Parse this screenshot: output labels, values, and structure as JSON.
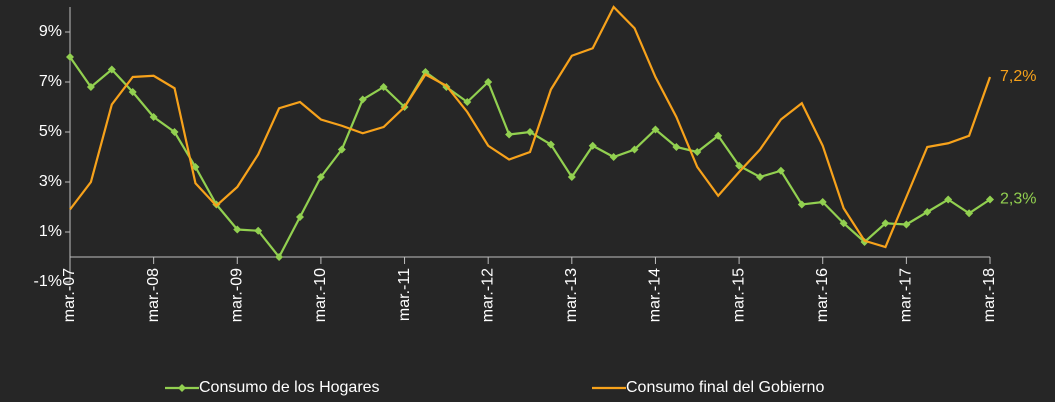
{
  "chart_data": {
    "type": "line",
    "categories": [
      "mar.-07",
      null,
      null,
      null,
      "mar.-08",
      null,
      null,
      null,
      "mar.-09",
      null,
      null,
      null,
      "mar.-10",
      null,
      null,
      null,
      "mar.-11",
      null,
      null,
      null,
      "mar.-12",
      null,
      null,
      null,
      "mar.-13",
      null,
      null,
      null,
      "mar.-14",
      null,
      null,
      null,
      "mar.-15",
      null,
      null,
      null,
      "mar.-16",
      null,
      null,
      null,
      "mar.-17",
      null,
      null,
      null,
      "mar.-18"
    ],
    "series": [
      {
        "name": "Consumo de los Hogares",
        "color": "#92d050",
        "marker": "diamond",
        "values": [
          8.0,
          6.8,
          7.5,
          6.6,
          5.6,
          5.0,
          3.6,
          2.1,
          1.1,
          1.05,
          0.0,
          1.6,
          3.2,
          4.3,
          6.3,
          6.8,
          6.0,
          7.4,
          6.8,
          6.2,
          7.0,
          4.9,
          5.0,
          4.5,
          3.2,
          4.45,
          4.0,
          4.3,
          5.1,
          4.4,
          4.2,
          4.85,
          3.65,
          3.2,
          3.45,
          2.1,
          2.2,
          1.35,
          0.6,
          1.35,
          1.3,
          1.8,
          2.3,
          1.75,
          2.3
        ],
        "value_labels": [
          null,
          null,
          null,
          null,
          null,
          null,
          null,
          null,
          null,
          null,
          null,
          null,
          null,
          null,
          null,
          null,
          null,
          null,
          null,
          null,
          null,
          null,
          null,
          null,
          null,
          null,
          null,
          null,
          null,
          null,
          null,
          null,
          null,
          null,
          null,
          null,
          null,
          null,
          null,
          null,
          null,
          null,
          null,
          null,
          "2,3%"
        ]
      },
      {
        "name": "Consumo final del Gobierno",
        "color": "#f7a21b",
        "marker": "none",
        "values": [
          1.9,
          3.0,
          6.1,
          7.2,
          7.25,
          6.75,
          2.95,
          2.05,
          2.8,
          4.1,
          5.95,
          6.2,
          5.5,
          5.25,
          4.95,
          5.2,
          6.0,
          7.3,
          6.85,
          5.8,
          4.45,
          3.9,
          4.2,
          6.7,
          8.05,
          8.35,
          10.0,
          9.15,
          7.2,
          5.6,
          3.6,
          2.45,
          3.4,
          4.3,
          5.5,
          6.15,
          4.45,
          1.95,
          0.65,
          0.4,
          2.4,
          4.4,
          4.55,
          4.85,
          7.2
        ],
        "value_labels": [
          null,
          null,
          null,
          null,
          null,
          null,
          null,
          null,
          null,
          null,
          null,
          null,
          null,
          null,
          null,
          null,
          null,
          null,
          null,
          null,
          null,
          null,
          null,
          null,
          null,
          null,
          null,
          null,
          null,
          null,
          null,
          null,
          null,
          null,
          null,
          null,
          null,
          null,
          null,
          null,
          null,
          null,
          null,
          null,
          "7,2%"
        ]
      }
    ],
    "ylim": [
      -1,
      10
    ],
    "yticks": [
      {
        "value": -1,
        "label": "-1%"
      },
      {
        "value": 1,
        "label": "1%"
      },
      {
        "value": 3,
        "label": "3%"
      },
      {
        "value": 5,
        "label": "5%"
      },
      {
        "value": 7,
        "label": "7%"
      },
      {
        "value": 9,
        "label": "9%"
      }
    ],
    "grid": false,
    "legend": "bottom",
    "background": "#262626"
  }
}
